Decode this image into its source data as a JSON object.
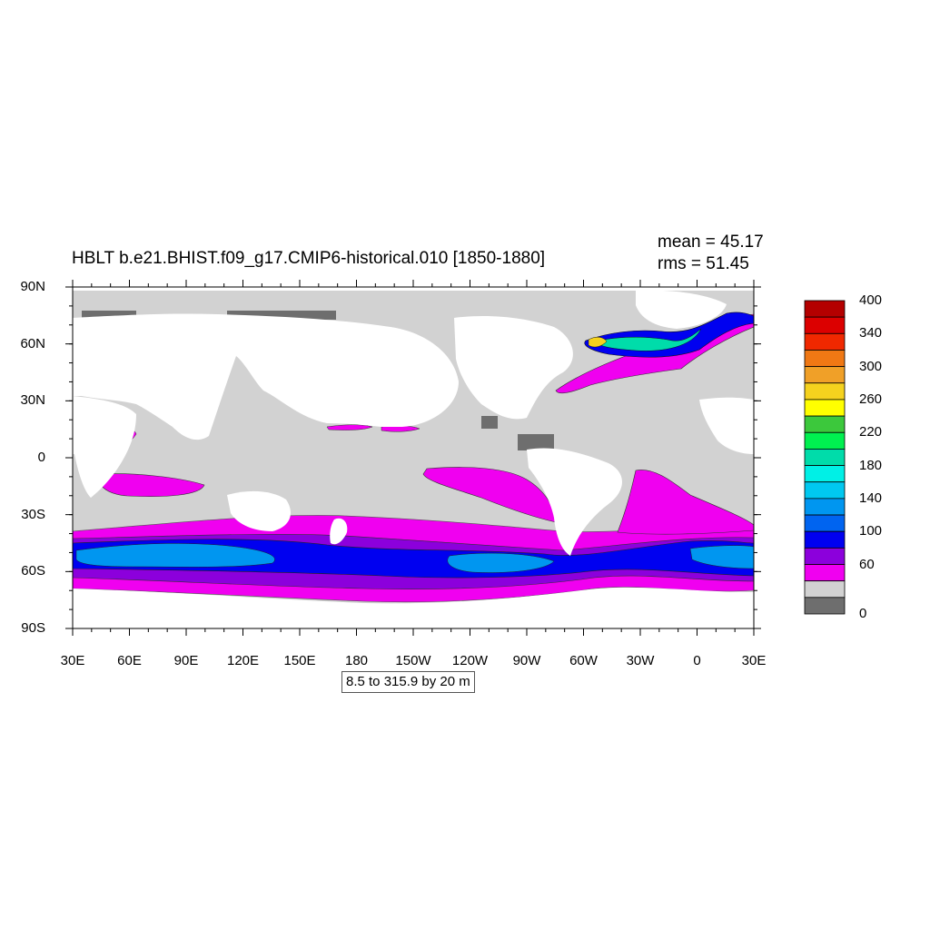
{
  "map": {
    "title": "HBLT b.e21.BHIST.f09_g17.CMIP6-historical.010 [1850-1880]",
    "mean_text": "mean = 45.17",
    "rms_text": "rms = 51.45",
    "contour_info": "8.5 to 315.9 by 20 m",
    "projection": "cylindrical equidistant",
    "lon_range": [
      "30E",
      "30E"
    ],
    "lat_range": [
      "90S",
      "90N"
    ],
    "lat_labels": [
      "90N",
      "60N",
      "30N",
      "0",
      "30S",
      "60S",
      "90S"
    ],
    "lon_labels": [
      "30E",
      "60E",
      "90E",
      "120E",
      "150E",
      "180",
      "150W",
      "120W",
      "90W",
      "60W",
      "30W",
      "0",
      "30E"
    ],
    "land_color": "#ffffff",
    "ocean_base_color": "#d2d2d2"
  },
  "colorbar": {
    "labels": [
      "400",
      "340",
      "300",
      "260",
      "220",
      "180",
      "140",
      "100",
      "60",
      "0"
    ],
    "colors": [
      "#b40000",
      "#dc0000",
      "#f02800",
      "#f07814",
      "#f0a028",
      "#f5d21e",
      "#ffff00",
      "#3cc83c",
      "#00f050",
      "#00dcaa",
      "#00f0e6",
      "#00c8f0",
      "#0096f0",
      "#0064f0",
      "#0000f0",
      "#8c00dc",
      "#f000f0",
      "#d2d2d2",
      "#6e6e6e"
    ]
  }
}
